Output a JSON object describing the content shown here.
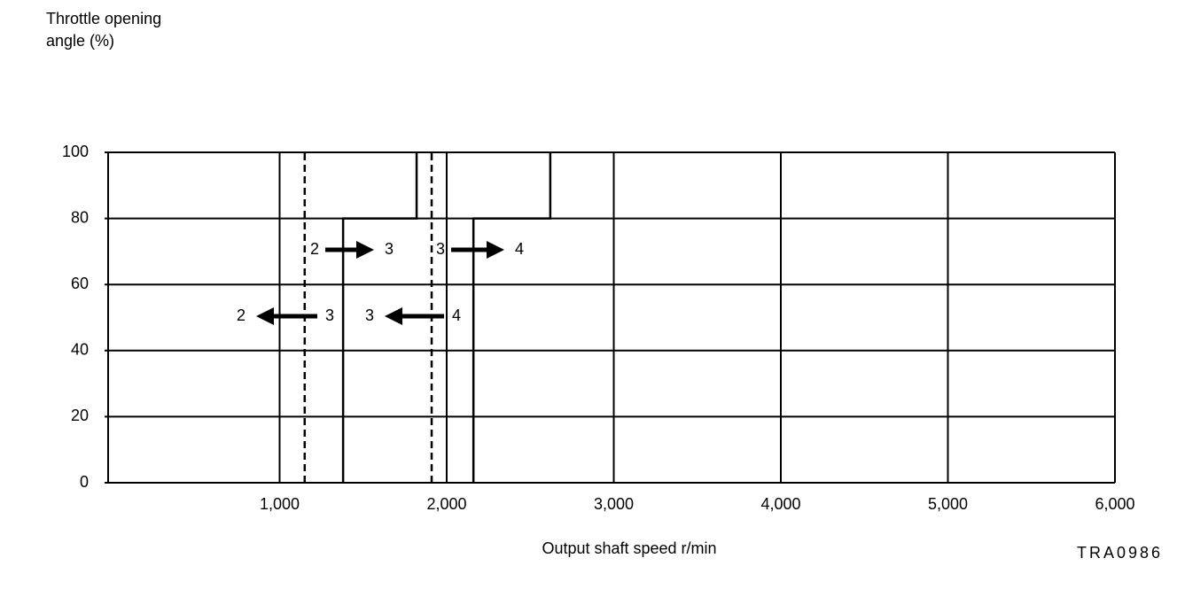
{
  "chart_data": {
    "type": "line",
    "ylabel": [
      "Throttle  opening",
      "angle (%)"
    ],
    "xlabel": "Output shaft speed r/min",
    "code": "TRA0986",
    "xlim": [
      0,
      6000
    ],
    "xticks": [
      {
        "value": 1000,
        "label": "1,000"
      },
      {
        "value": 2000,
        "label": "2,000"
      },
      {
        "value": 3000,
        "label": "3,000"
      },
      {
        "value": 4000,
        "label": "4,000"
      },
      {
        "value": 5000,
        "label": "5,000"
      },
      {
        "value": 6000,
        "label": "6,000"
      }
    ],
    "ylim": [
      0,
      100
    ],
    "yticks": [
      0,
      20,
      40,
      60,
      80,
      100
    ],
    "grid": true,
    "series": [
      {
        "color": "#000000",
        "dashed": false,
        "x": [
          1380,
          1380,
          1820,
          1820
        ],
        "values": [
          0,
          80,
          80,
          100
        ]
      },
      {
        "color": "#000000",
        "dashed": true,
        "x": [
          1150,
          1150
        ],
        "values": [
          0,
          100
        ]
      },
      {
        "color": "#000000",
        "dashed": false,
        "x": [
          2160,
          2160,
          2620,
          2620
        ],
        "values": [
          0,
          80,
          80,
          100
        ]
      },
      {
        "color": "#000000",
        "dashed": true,
        "x": [
          1910,
          1910
        ],
        "values": [
          0,
          100
        ]
      }
    ],
    "annotations": [
      {
        "text": [
          "2",
          "3"
        ]
      },
      {
        "text": [
          "3",
          "4"
        ]
      },
      {
        "text": [
          "2",
          "3"
        ]
      },
      {
        "text": [
          "3",
          "4"
        ]
      }
    ]
  }
}
